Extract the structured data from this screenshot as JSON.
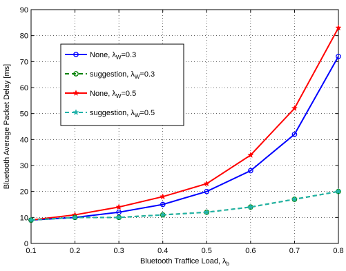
{
  "chart_data": {
    "type": "line",
    "title": "",
    "xlabel": "Bluetooth Traffice Load, λ",
    "xlabel_sub": "b",
    "ylabel": "Bluetooth Average Packet Delay [ms]",
    "xlim": [
      0.1,
      0.8
    ],
    "ylim": [
      0,
      90
    ],
    "xticks": [
      0.1,
      0.2,
      0.3,
      0.4,
      0.5,
      0.6,
      0.7,
      0.8
    ],
    "yticks": [
      0,
      10,
      20,
      30,
      40,
      50,
      60,
      70,
      80,
      90
    ],
    "grid": true,
    "legend_position": "upper-left",
    "x": [
      0.1,
      0.2,
      0.3,
      0.4,
      0.5,
      0.6,
      0.7,
      0.8
    ],
    "series": [
      {
        "name": "None, λ",
        "name_sub": "W",
        "name_suffix": "=0.3",
        "color": "#0000ff",
        "line": "solid",
        "marker": "circle",
        "values": [
          9,
          10,
          12,
          15,
          20,
          28,
          42,
          72
        ]
      },
      {
        "name": "suggestion, λ",
        "name_sub": "W",
        "name_suffix": "=0.3",
        "color": "#008000",
        "line": "dashed",
        "marker": "circle",
        "values": [
          9,
          10,
          10,
          11,
          12,
          14,
          17,
          20
        ]
      },
      {
        "name": "None, λ",
        "name_sub": "W",
        "name_suffix": "=0.5",
        "color": "#ff0000",
        "line": "solid",
        "marker": "star",
        "values": [
          9,
          11,
          14,
          18,
          23,
          34,
          52,
          83
        ]
      },
      {
        "name": "suggestion, λ",
        "name_sub": "W",
        "name_suffix": "=0.5",
        "color": "#20b2aa",
        "line": "dashed",
        "marker": "star",
        "values": [
          9,
          10,
          10,
          11,
          12,
          14,
          17,
          20
        ]
      }
    ]
  }
}
